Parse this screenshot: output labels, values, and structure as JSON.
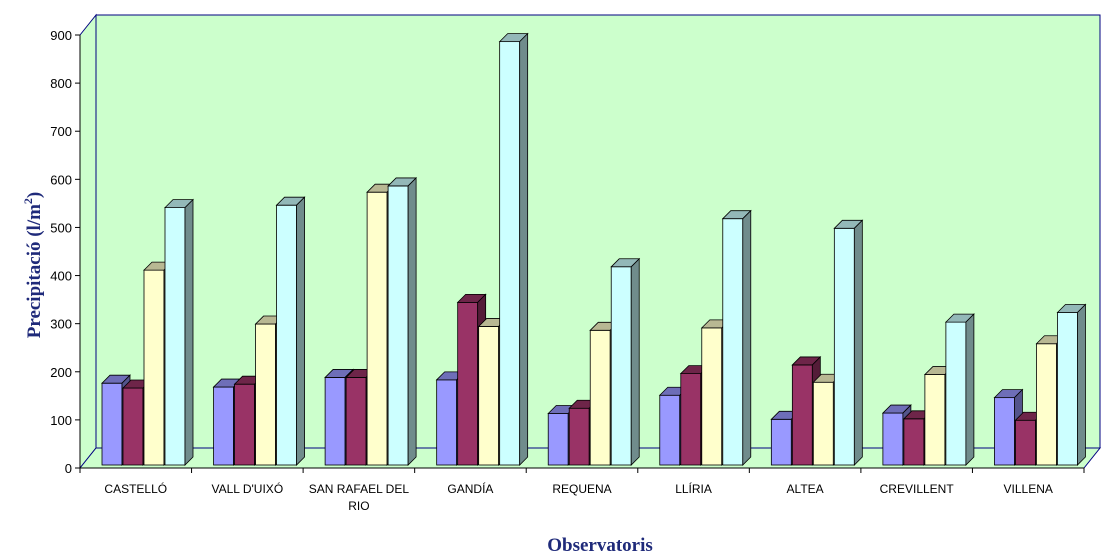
{
  "chart_data": {
    "type": "bar",
    "title": "",
    "xlabel": "Observatoris",
    "ylabel": "Precipitació (l/m",
    "ylabel_sup": "2",
    "ylabel_close": ")",
    "ylim": [
      0,
      900
    ],
    "yticks": [
      0,
      100,
      200,
      300,
      400,
      500,
      600,
      700,
      800,
      900
    ],
    "categories": [
      [
        "CASTELLÓ"
      ],
      [
        "VALL D'UIXÓ"
      ],
      [
        "SAN RAFAEL DEL",
        "RIO"
      ],
      [
        "GANDÍA"
      ],
      [
        "REQUENA"
      ],
      [
        "LLÍRIA"
      ],
      [
        "ALTEA"
      ],
      [
        "CREVILLENT"
      ],
      [
        "VILLENA"
      ]
    ],
    "series": [
      {
        "values": [
          170,
          162,
          182,
          177,
          107,
          145,
          95,
          108,
          140
        ],
        "color": "#9999ff"
      },
      {
        "values": [
          160,
          168,
          182,
          338,
          118,
          190,
          208,
          96,
          93
        ],
        "color": "#993366"
      },
      {
        "values": [
          405,
          293,
          567,
          288,
          280,
          285,
          172,
          188,
          252
        ],
        "color": "#ffffcc"
      },
      {
        "values": [
          535,
          540,
          580,
          880,
          412,
          512,
          492,
          297,
          317
        ],
        "color": "#ccffff"
      }
    ],
    "grid": false,
    "plot_background": "#ccffcc",
    "legend": "none"
  }
}
